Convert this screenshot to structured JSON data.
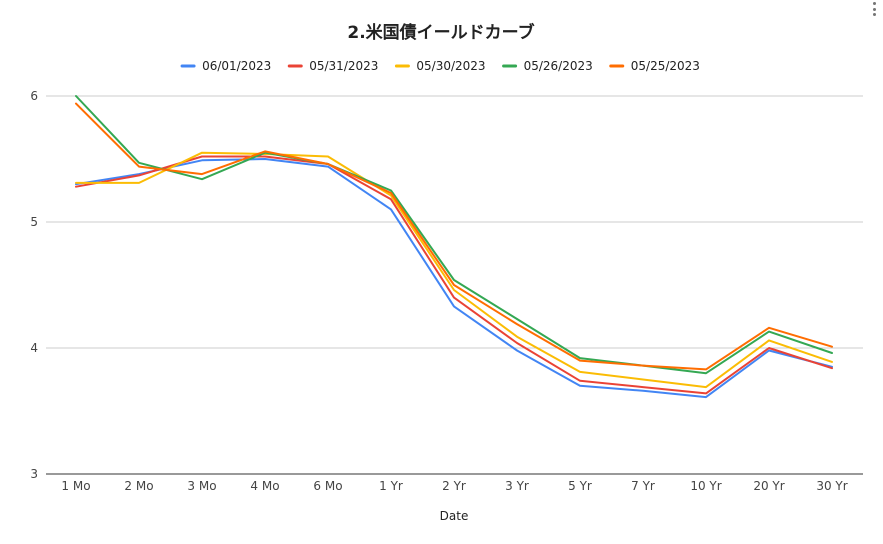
{
  "chart_data": {
    "type": "line",
    "title": "2.米国債イールドカーブ",
    "xlabel": "Date",
    "ylabel": "",
    "ylim": [
      3,
      6
    ],
    "yticks": [
      3,
      4,
      5,
      6
    ],
    "grid": true,
    "legend_position": "top",
    "categories": [
      "1 Mo",
      "2 Mo",
      "3 Mo",
      "4 Mo",
      "6 Mo",
      "1 Yr",
      "2 Yr",
      "3 Yr",
      "5 Yr",
      "7 Yr",
      "10 Yr",
      "20 Yr",
      "30 Yr"
    ],
    "series": [
      {
        "name": "06/01/2023",
        "color": "#4285f4",
        "values": [
          5.3,
          5.38,
          5.49,
          5.5,
          5.44,
          5.1,
          4.33,
          3.98,
          3.7,
          3.66,
          3.61,
          3.98,
          3.85
        ]
      },
      {
        "name": "05/31/2023",
        "color": "#ea4335",
        "values": [
          5.28,
          5.37,
          5.52,
          5.52,
          5.46,
          5.18,
          4.4,
          4.04,
          3.74,
          3.69,
          3.64,
          4.0,
          3.84
        ]
      },
      {
        "name": "05/30/2023",
        "color": "#fbbc04",
        "values": [
          5.31,
          5.31,
          5.55,
          5.54,
          5.52,
          5.21,
          4.46,
          4.09,
          3.81,
          3.75,
          3.69,
          4.06,
          3.89
        ]
      },
      {
        "name": "05/26/2023",
        "color": "#34a853",
        "values": [
          6.0,
          5.47,
          5.34,
          5.55,
          5.46,
          5.25,
          4.54,
          4.23,
          3.92,
          3.86,
          3.8,
          4.13,
          3.96
        ]
      },
      {
        "name": "05/25/2023",
        "color": "#ff6d01",
        "values": [
          5.94,
          5.44,
          5.38,
          5.56,
          5.46,
          5.23,
          4.5,
          4.19,
          3.9,
          3.86,
          3.83,
          4.16,
          4.01
        ]
      }
    ]
  },
  "icons": {
    "menu": "more-vert-icon"
  }
}
